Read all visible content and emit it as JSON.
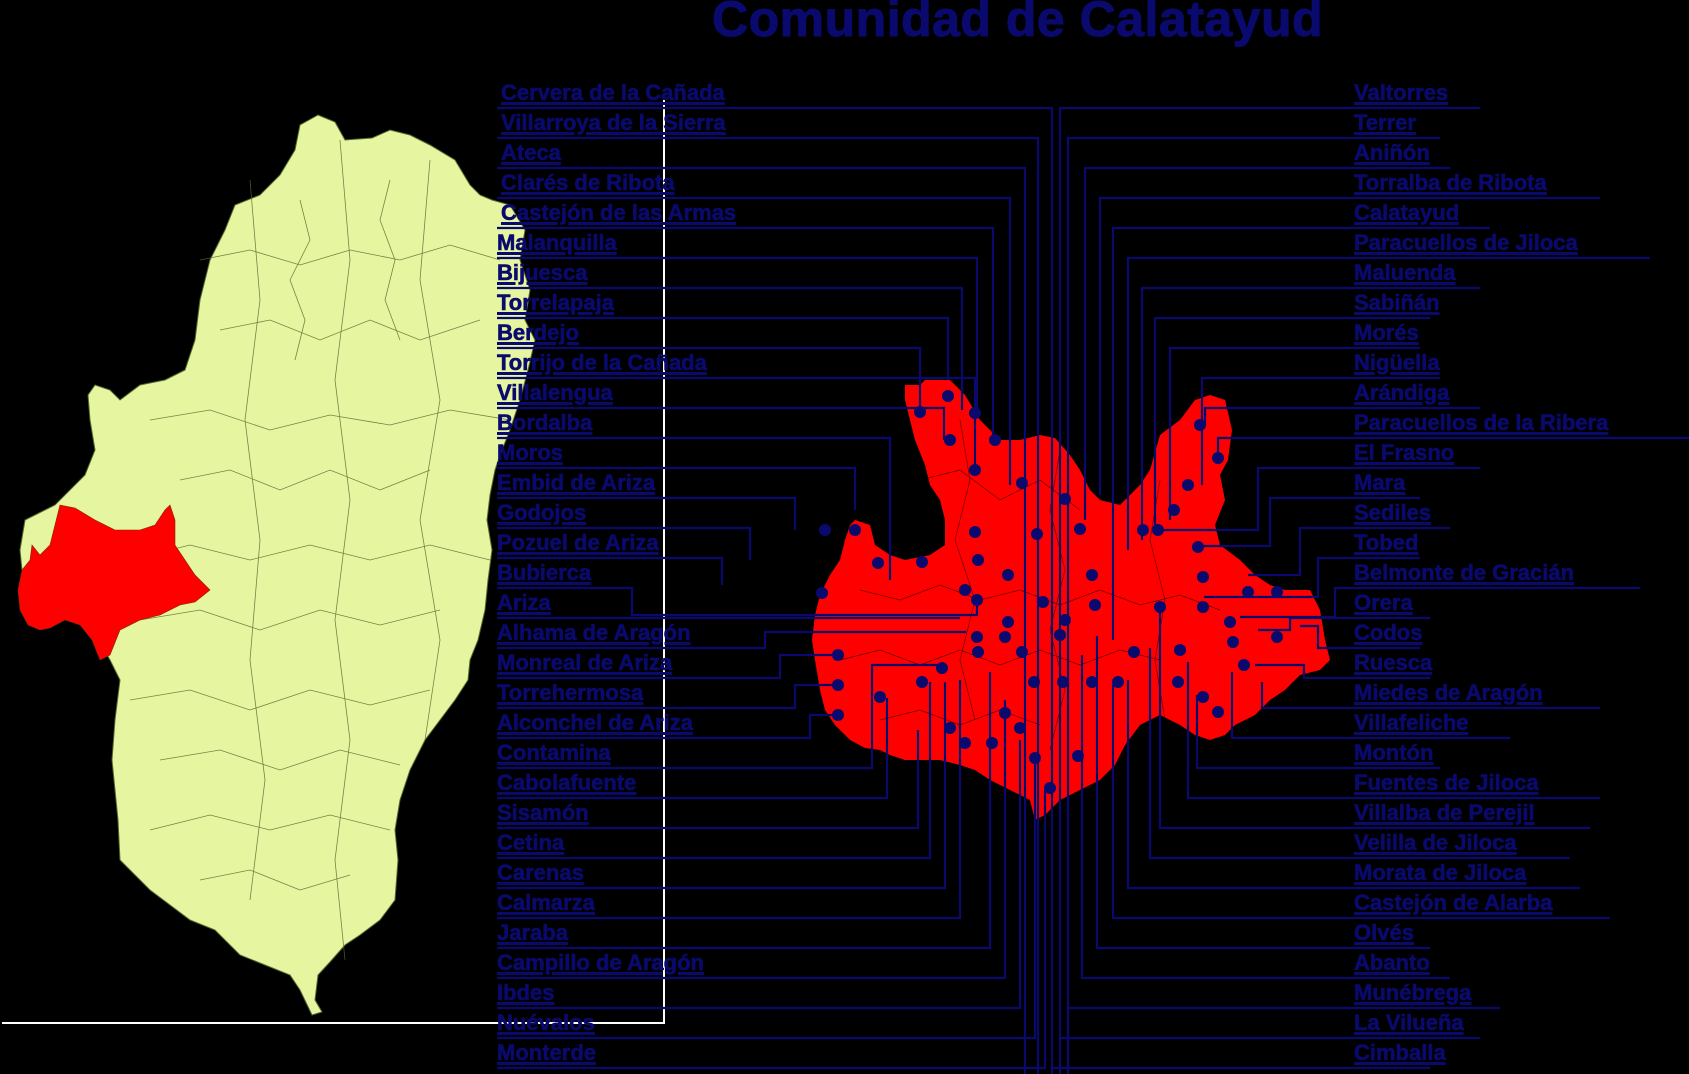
{
  "title": "Comunidad de Calatayud",
  "colors": {
    "background": "#000000",
    "label_navy": "#0a0a6e",
    "aragon_fill": "#e6f5a0",
    "calatayud_fill": "#ff0000",
    "frame_white": "#ffffff"
  },
  "maps": {
    "overview": {
      "name": "Aragón",
      "highlighted_region": "Comunidad de Calatayud"
    },
    "detail": {
      "name": "Comunidad de Calatayud"
    }
  },
  "left_labels": [
    "Cervera de la Cañada",
    "Villarroya de la Sierra",
    "Ateca",
    "Clarés de Ribota",
    "Castejón de las Armas",
    "Malanquilla",
    "Bijuesca",
    "Torrelapaja",
    "Berdejo",
    "Torrijo de la Cañada",
    "Villalengua",
    "Bordalba",
    "Moros",
    "Embid de Ariza",
    "Godojos",
    "Pozuel de Ariza",
    "Bubierca",
    "Ariza",
    "Alhama de Aragón",
    "Monreal de Ariza",
    "Torrehermosa",
    "Alconchel de Ariza",
    "Contamina",
    "Cabolafuente",
    "Sisamón",
    "Cetina",
    "Carenas",
    "Calmarza",
    "Jaraba",
    "Campillo de Aragón",
    "Ibdes",
    "Nuévalos",
    "Monterde"
  ],
  "right_labels": [
    "Valtorres",
    "Terrer",
    "Aniñón",
    "Torralba de Ribota",
    "Calatayud",
    "Paracuellos de Jiloca",
    "Maluenda",
    "Sabiñán",
    "Morés",
    "Nigüella",
    "Arándiga",
    "Paracuellos de la Ribera",
    "El Frasno",
    "Mara",
    "Sediles",
    "Tobed",
    "Belmonte de Gracián",
    "Orera",
    "Codos",
    "Ruesca",
    "Miedes de Aragón",
    "Villafeliche",
    "Montón",
    "Fuentes de Jiloca",
    "Villalba de Perejil",
    "Velilla de Jiloca",
    "Morata de Jiloca",
    "Castejón de Alarba",
    "Olvés",
    "Abanto",
    "Munébrega",
    "La Vilueña",
    "Cimballa"
  ]
}
